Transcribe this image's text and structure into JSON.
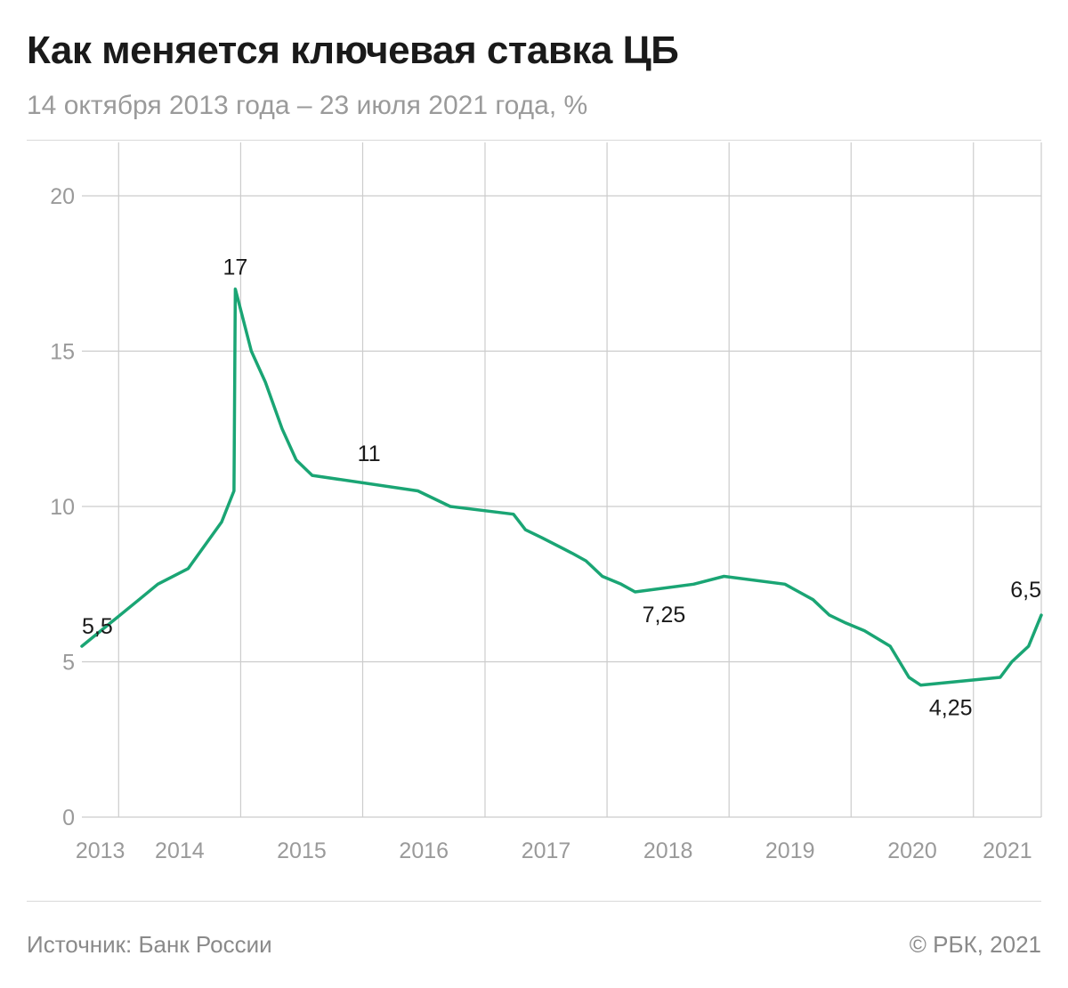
{
  "title": "Как меняется ключевая ставка ЦБ",
  "subtitle": "14 октября 2013 года – 23 июля 2021 года, %",
  "footer": {
    "source": "Источник: Банк России",
    "copyright": "© РБК, 2021"
  },
  "colors": {
    "line": "#1aa574",
    "grid": "#cccccc",
    "axis_text": "#9a9a9a",
    "label_text": "#1a1a1a"
  },
  "chart_data": {
    "type": "line",
    "title": "Как меняется ключевая ставка ЦБ",
    "ylim": [
      0,
      20
    ],
    "yticks": [
      0,
      5,
      10,
      15,
      20
    ],
    "xlim": [
      "2013-09-13",
      "2021-07-23"
    ],
    "year_ticks": [
      {
        "label": "2013",
        "date": "2013-09-13"
      },
      {
        "label": "2014",
        "date": "2014-01-01"
      },
      {
        "label": "2015",
        "date": "2015-01-01"
      },
      {
        "label": "2016",
        "date": "2016-01-01"
      },
      {
        "label": "2017",
        "date": "2017-01-01"
      },
      {
        "label": "2018",
        "date": "2018-01-01"
      },
      {
        "label": "2019",
        "date": "2019-01-01"
      },
      {
        "label": "2020",
        "date": "2020-01-01"
      },
      {
        "label": "2021",
        "date": "2021-01-01"
      }
    ],
    "grid": true,
    "series": [
      {
        "x": [
          "2013-09-13",
          "2014-03-03",
          "2014-04-28",
          "2014-07-28",
          "2014-11-05",
          "2014-12-12",
          "2014-12-16",
          "2015-02-02",
          "2015-03-16",
          "2015-05-05",
          "2015-06-16",
          "2015-08-03",
          "2016-06-14",
          "2016-09-19",
          "2017-03-27",
          "2017-05-02",
          "2017-06-19",
          "2017-09-18",
          "2017-10-30",
          "2017-12-18",
          "2018-02-12",
          "2018-03-26",
          "2018-09-17",
          "2018-12-17",
          "2019-06-17",
          "2019-07-29",
          "2019-09-09",
          "2019-10-28",
          "2019-12-16",
          "2020-02-10",
          "2020-04-27",
          "2020-06-22",
          "2020-07-27",
          "2021-03-22",
          "2021-04-26",
          "2021-06-15",
          "2021-07-23"
        ],
        "y": [
          5.5,
          7,
          7.5,
          8,
          9.5,
          10.5,
          17,
          15,
          14,
          12.5,
          11.5,
          11,
          10.5,
          10,
          9.75,
          9.25,
          9,
          8.5,
          8.25,
          7.75,
          7.5,
          7.25,
          7.5,
          7.75,
          7.5,
          7.25,
          7,
          6.5,
          6.25,
          6,
          5.5,
          4.5,
          4.25,
          4.5,
          5,
          5.5,
          6.5
        ]
      }
    ],
    "annotations": [
      {
        "text": "5,5",
        "date": "2013-09-13",
        "value": 5.5,
        "pos": "above-right"
      },
      {
        "text": "17",
        "date": "2014-12-16",
        "value": 17,
        "pos": "above"
      },
      {
        "text": "11",
        "date": "2016-01-20",
        "value": 11,
        "pos": "above"
      },
      {
        "text": "7,25",
        "date": "2018-06-20",
        "value": 7.25,
        "pos": "below"
      },
      {
        "text": "4,25",
        "date": "2020-10-25",
        "value": 4.25,
        "pos": "below"
      },
      {
        "text": "6,5",
        "date": "2021-07-23",
        "value": 6.5,
        "pos": "above-left"
      }
    ]
  }
}
